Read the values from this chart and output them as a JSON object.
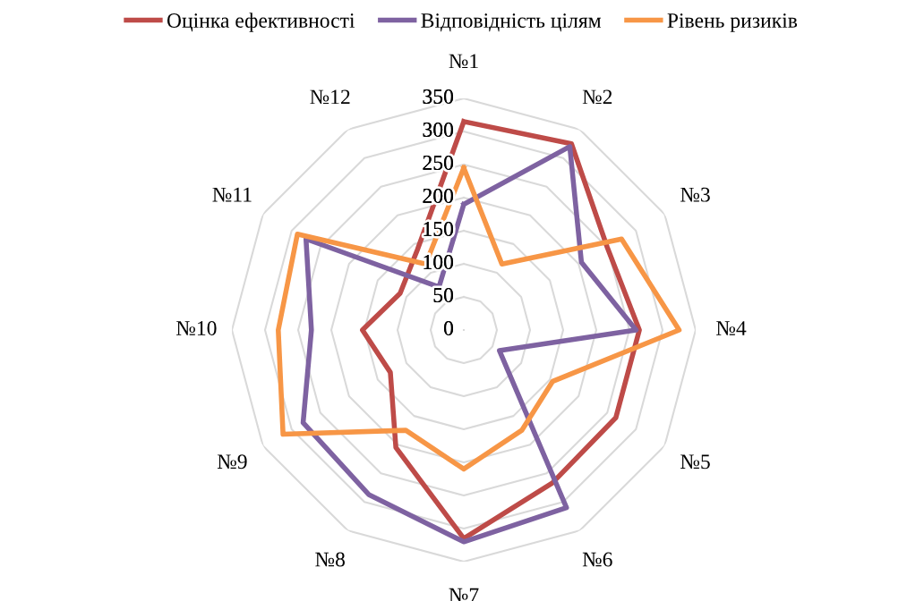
{
  "chart_data": {
    "type": "radar",
    "categories": [
      "№1",
      "№2",
      "№3",
      "№4",
      "№5",
      "№6",
      "№7",
      "№8",
      "№9",
      "№10",
      "№11",
      "№12"
    ],
    "series": [
      {
        "name": "Оцінка ефективності",
        "color": "#be4b48",
        "values": [
          315,
          325,
          250,
          265,
          265,
          267,
          315,
          205,
          128,
          153,
          111,
          140
        ]
      },
      {
        "name": "Відповідність цілям",
        "color": "#7e62a1",
        "values": [
          190,
          320,
          205,
          260,
          62,
          310,
          320,
          287,
          280,
          230,
          275,
          75
        ]
      },
      {
        "name": "Рівень ризиків",
        "color": "#f79646",
        "values": [
          245,
          115,
          275,
          325,
          155,
          175,
          210,
          175,
          315,
          280,
          290,
          115
        ]
      }
    ],
    "ylim": [
      0,
      350
    ],
    "yticks": [
      0,
      50,
      100,
      150,
      200,
      250,
      300,
      350
    ],
    "grid": true,
    "legend": "top"
  }
}
